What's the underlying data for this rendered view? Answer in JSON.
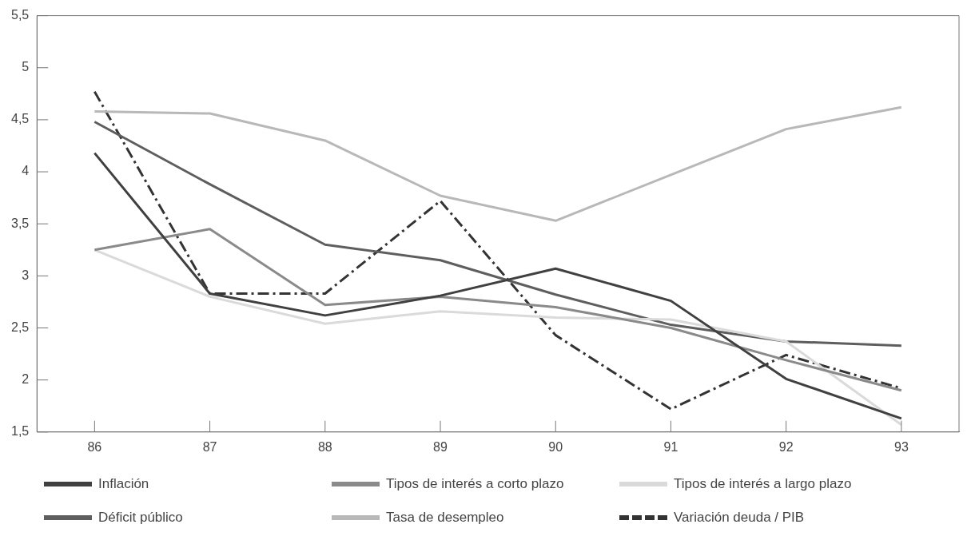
{
  "chart_data": {
    "type": "line",
    "categories": [
      "86",
      "87",
      "88",
      "89",
      "90",
      "91",
      "92",
      "93"
    ],
    "series": [
      {
        "name": "Inflación",
        "color": "#404040",
        "line_style": "solid",
        "values": [
          4.18,
          2.83,
          2.62,
          2.81,
          3.07,
          2.76,
          2.01,
          1.63
        ]
      },
      {
        "name": "Tipos de interés a corto plazo",
        "color": "#8a8a8a",
        "line_style": "solid",
        "values": [
          3.25,
          3.45,
          2.72,
          2.8,
          2.7,
          2.5,
          2.19,
          1.9
        ]
      },
      {
        "name": "Tipos de interés a largo plazo",
        "color": "#dadada",
        "line_style": "solid",
        "values": [
          3.25,
          2.8,
          2.54,
          2.66,
          2.6,
          2.58,
          2.37,
          1.57
        ]
      },
      {
        "name": "Déficit público",
        "color": "#5e5e5e",
        "line_style": "solid",
        "values": [
          4.48,
          3.88,
          3.3,
          3.15,
          2.82,
          2.53,
          2.37,
          2.33
        ]
      },
      {
        "name": "Tasa de desempleo",
        "color": "#b8b8b8",
        "line_style": "solid",
        "values": [
          4.58,
          4.56,
          4.3,
          3.77,
          3.53,
          3.97,
          4.41,
          4.62
        ]
      },
      {
        "name": "Variación deuda / PIB",
        "color": "#333333",
        "line_style": "dashed",
        "values": [
          4.77,
          2.83,
          2.83,
          3.72,
          2.43,
          1.72,
          2.24,
          1.92
        ]
      }
    ],
    "ylim": [
      1.5,
      5.5
    ],
    "yticks": [
      {
        "value": 1.5,
        "label": "1,5"
      },
      2,
      {
        "value": 2.5,
        "label": "2,5"
      },
      3,
      {
        "value": 3.5,
        "label": "3,5"
      },
      4,
      {
        "value": 4.5,
        "label": "4,5"
      },
      5,
      {
        "value": 5.5,
        "label": "5,5"
      }
    ],
    "grid": false,
    "legend": "bottom",
    "marker": "none"
  }
}
